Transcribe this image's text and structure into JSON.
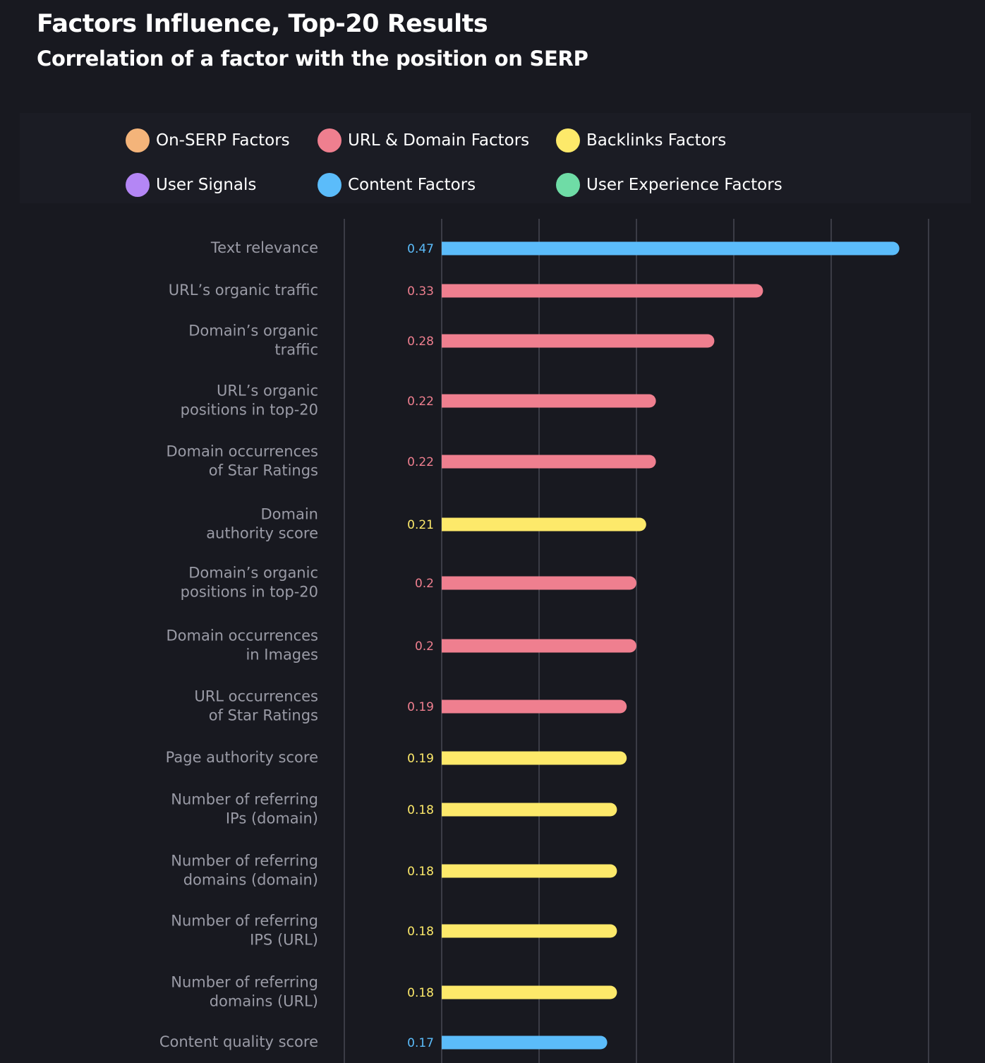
{
  "header": {
    "title": "Factors Influence, Top-20 Results",
    "subtitle": "Correlation of a factor with the position on SERP"
  },
  "legend": [
    {
      "label": "On-SERP Factors",
      "color": "#f4b47a"
    },
    {
      "label": "URL & Domain Factors",
      "color": "#ef7f8f"
    },
    {
      "label": "Backlinks Factors",
      "color": "#fde96a"
    },
    {
      "label": "User Signals",
      "color": "#b486f5"
    },
    {
      "label": "Content Factors",
      "color": "#5bbcfa"
    },
    {
      "label": "User Experience Factors",
      "color": "#6fdca6"
    }
  ],
  "chart_data": {
    "type": "bar",
    "orientation": "horizontal",
    "title": "Factors Influence, Top-20 Results",
    "subtitle": "Correlation of a factor with the position on SERP",
    "xlim": [
      -0.1,
      0.5
    ],
    "gridlines": [
      -0.1,
      0,
      0.1,
      0.2,
      0.3,
      0.4,
      0.5
    ],
    "legend_position": "top",
    "categories": [
      [
        "Text relevance"
      ],
      [
        "URL’s organic traffic"
      ],
      [
        "Domain’s organic",
        "traffic"
      ],
      [
        "URL’s organic",
        "positions in top-20"
      ],
      [
        "Domain occurrences",
        "of Star Ratings"
      ],
      [
        "Domain",
        "authority score"
      ],
      [
        "Domain’s organic",
        "positions in top-20"
      ],
      [
        "Domain occurrences",
        "in Images"
      ],
      [
        "URL occurrences",
        "of Star Ratings"
      ],
      [
        "Page authority score"
      ],
      [
        "Number of referring",
        "IPs (domain)"
      ],
      [
        "Number of referring",
        "domains (domain)"
      ],
      [
        "Number of referring",
        "IPS (URL)"
      ],
      [
        "Number of referring",
        "domains (URL)"
      ],
      [
        "Content quality score"
      ]
    ],
    "values": [
      0.47,
      0.33,
      0.28,
      0.22,
      0.22,
      0.21,
      0.2,
      0.2,
      0.19,
      0.19,
      0.18,
      0.18,
      0.18,
      0.18,
      0.17
    ],
    "value_labels": [
      "0.47",
      "0.33",
      "0.28",
      "0.22",
      "0.22",
      "0.21",
      "0.2",
      "0.2",
      "0.19",
      "0.19",
      "0.18",
      "0.18",
      "0.18",
      "0.18",
      "0.17"
    ],
    "groups": [
      "Content Factors",
      "URL & Domain Factors",
      "URL & Domain Factors",
      "URL & Domain Factors",
      "URL & Domain Factors",
      "Backlinks Factors",
      "URL & Domain Factors",
      "URL & Domain Factors",
      "URL & Domain Factors",
      "Backlinks Factors",
      "Backlinks Factors",
      "Backlinks Factors",
      "Backlinks Factors",
      "Backlinks Factors",
      "Content Factors"
    ],
    "colors": [
      "#5bbcfa",
      "#ef7f8f",
      "#ef7f8f",
      "#ef7f8f",
      "#ef7f8f",
      "#fde96a",
      "#ef7f8f",
      "#ef7f8f",
      "#ef7f8f",
      "#fde96a",
      "#fde96a",
      "#fde96a",
      "#fde96a",
      "#fde96a",
      "#5bbcfa"
    ]
  },
  "style": {
    "background": "#181920",
    "gridline_color": "#474852",
    "label_color": "#9a9ba6"
  }
}
